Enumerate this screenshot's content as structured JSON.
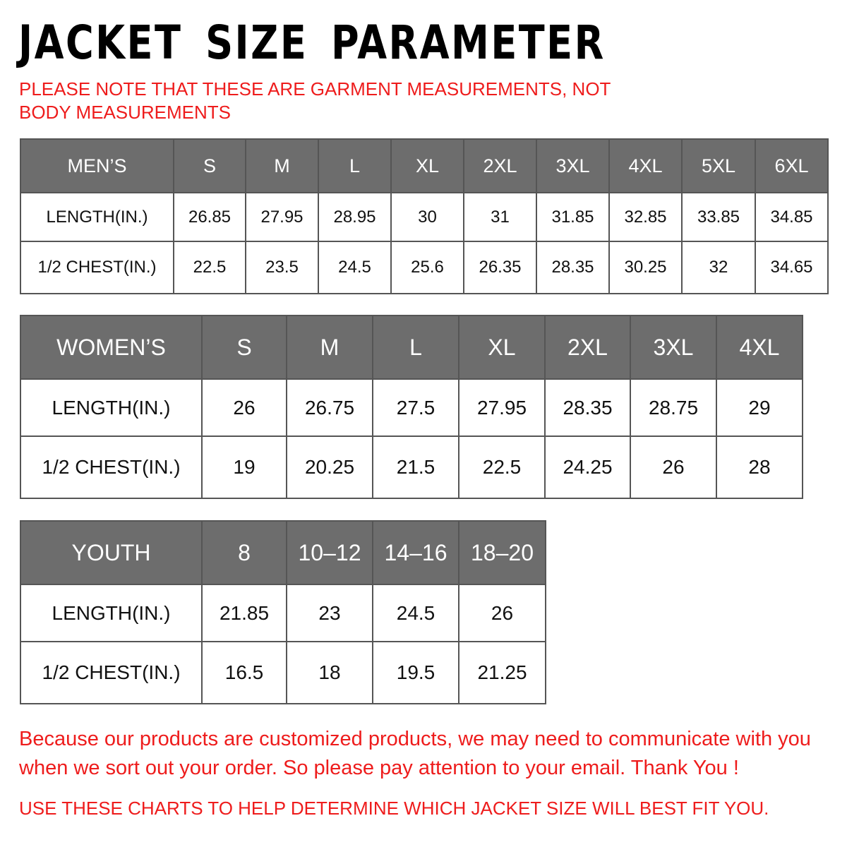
{
  "title": "JACKET SIZE PARAMETER",
  "note": "PLEASE NOTE THAT THESE ARE GARMENT MEASUREMENTS, NOT BODY MEASUREMENTS",
  "colors": {
    "header_bg": "#6d6d6d",
    "accent_red": "#ee1c1c"
  },
  "tables": [
    {
      "key": "men",
      "header": [
        "MEN’S",
        "S",
        "M",
        "L",
        "XL",
        "2XL",
        "3XL",
        "4XL",
        "5XL",
        "6XL"
      ],
      "rows": [
        [
          "LENGTH(IN.)",
          "26.85",
          "27.95",
          "28.95",
          "30",
          "31",
          "31.85",
          "32.85",
          "33.85",
          "34.85"
        ],
        [
          "1/2 CHEST(IN.)",
          "22.5",
          "23.5",
          "24.5",
          "25.6",
          "26.35",
          "28.35",
          "30.25",
          "32",
          "34.65"
        ]
      ]
    },
    {
      "key": "women",
      "header": [
        "WOMEN’S",
        "S",
        "M",
        "L",
        "XL",
        "2XL",
        "3XL",
        "4XL"
      ],
      "rows": [
        [
          "LENGTH(IN.)",
          "26",
          "26.75",
          "27.5",
          "27.95",
          "28.35",
          "28.75",
          "29"
        ],
        [
          "1/2 CHEST(IN.)",
          "19",
          "20.25",
          "21.5",
          "22.5",
          "24.25",
          "26",
          "28"
        ]
      ]
    },
    {
      "key": "youth",
      "header": [
        "YOUTH",
        "8",
        "10–12",
        "14–16",
        "18–20"
      ],
      "rows": [
        [
          "LENGTH(IN.)",
          "21.85",
          "23",
          "24.5",
          "26"
        ],
        [
          "1/2 CHEST(IN.)",
          "16.5",
          "18",
          "19.5",
          "21.25"
        ]
      ]
    }
  ],
  "footer": {
    "message": "Because our products are customized products, we may need to communicate with you when we sort out your order. So please pay attention to your email. Thank You !",
    "instruction": "USE THESE CHARTS TO HELP DETERMINE WHICH JACKET SIZE WILL BEST FIT YOU."
  }
}
